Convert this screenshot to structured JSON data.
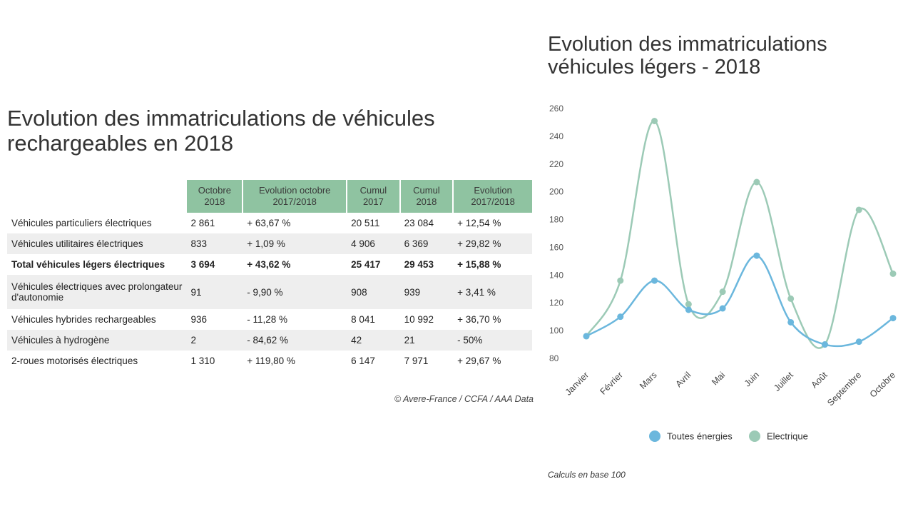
{
  "left": {
    "title_line1": "Evolution des immatriculations de véhicules",
    "title_line2": "rechargeables en 2018",
    "headers": [
      "Octobre 2018",
      "Evolution octobre 2017/2018",
      "Cumul 2017",
      "Cumul 2018",
      "Evolution 2017/2018"
    ],
    "rows": [
      {
        "label": "Véhicules particuliers électriques",
        "values": [
          "2 861",
          "+ 63,67 %",
          "20 511",
          "23 084",
          "+ 12,54 %"
        ]
      },
      {
        "label": "Véhicules utilitaires électriques",
        "values": [
          "833",
          "+ 1,09 %",
          "4 906",
          "6 369",
          "+ 29,82 %"
        ]
      },
      {
        "label": "Total véhicules légers électriques",
        "values": [
          "3 694",
          "+ 43,62 %",
          "25 417",
          "29 453",
          "+ 15,88 %"
        ]
      },
      {
        "label": "Véhicules électriques avec prolongateur d'autonomie",
        "values": [
          "91",
          "- 9,90 %",
          "908",
          "939",
          "+ 3,41 %"
        ]
      },
      {
        "label": "Véhicules hybrides rechargeables",
        "values": [
          "936",
          "- 11,28 %",
          "8 041",
          "10 992",
          "+ 36,70 %"
        ]
      },
      {
        "label": "Véhicules à hydrogène",
        "values": [
          "2",
          "- 84,62 %",
          "42",
          "21",
          "- 50%"
        ]
      },
      {
        "label": "2-roues motorisés électriques",
        "values": [
          "1 310",
          "+ 119,80 %",
          "6 147",
          "7 971",
          "+ 29,67 %"
        ]
      }
    ],
    "source": "© Avere-France / CCFA / AAA Data"
  },
  "right": {
    "title_line1": "Evolution des immatriculations",
    "title_line2": "véhicules légers - 2018",
    "footnote": "Calculs en base 100"
  },
  "colors": {
    "header_bg": "#8fc3a1",
    "toutes": "#6bb7dd",
    "electrique": "#9ccab6"
  },
  "chart_data": {
    "type": "line",
    "categories": [
      "Janvier",
      "Février",
      "Mars",
      "Avril",
      "Mai",
      "Juin",
      "Juillet",
      "Août",
      "Septembre",
      "Octobre"
    ],
    "series": [
      {
        "name": "Toutes énergies",
        "values": [
          96,
          110,
          136,
          115,
          116,
          154,
          106,
          90,
          92,
          109
        ]
      },
      {
        "name": "Electrique",
        "values": [
          96,
          136,
          251,
          119,
          128,
          207,
          123,
          90,
          187,
          141
        ]
      }
    ],
    "ylim": [
      80,
      260
    ],
    "yticks": [
      80,
      100,
      120,
      140,
      160,
      180,
      200,
      220,
      240,
      260
    ],
    "grid": false,
    "legend": "bottom"
  }
}
